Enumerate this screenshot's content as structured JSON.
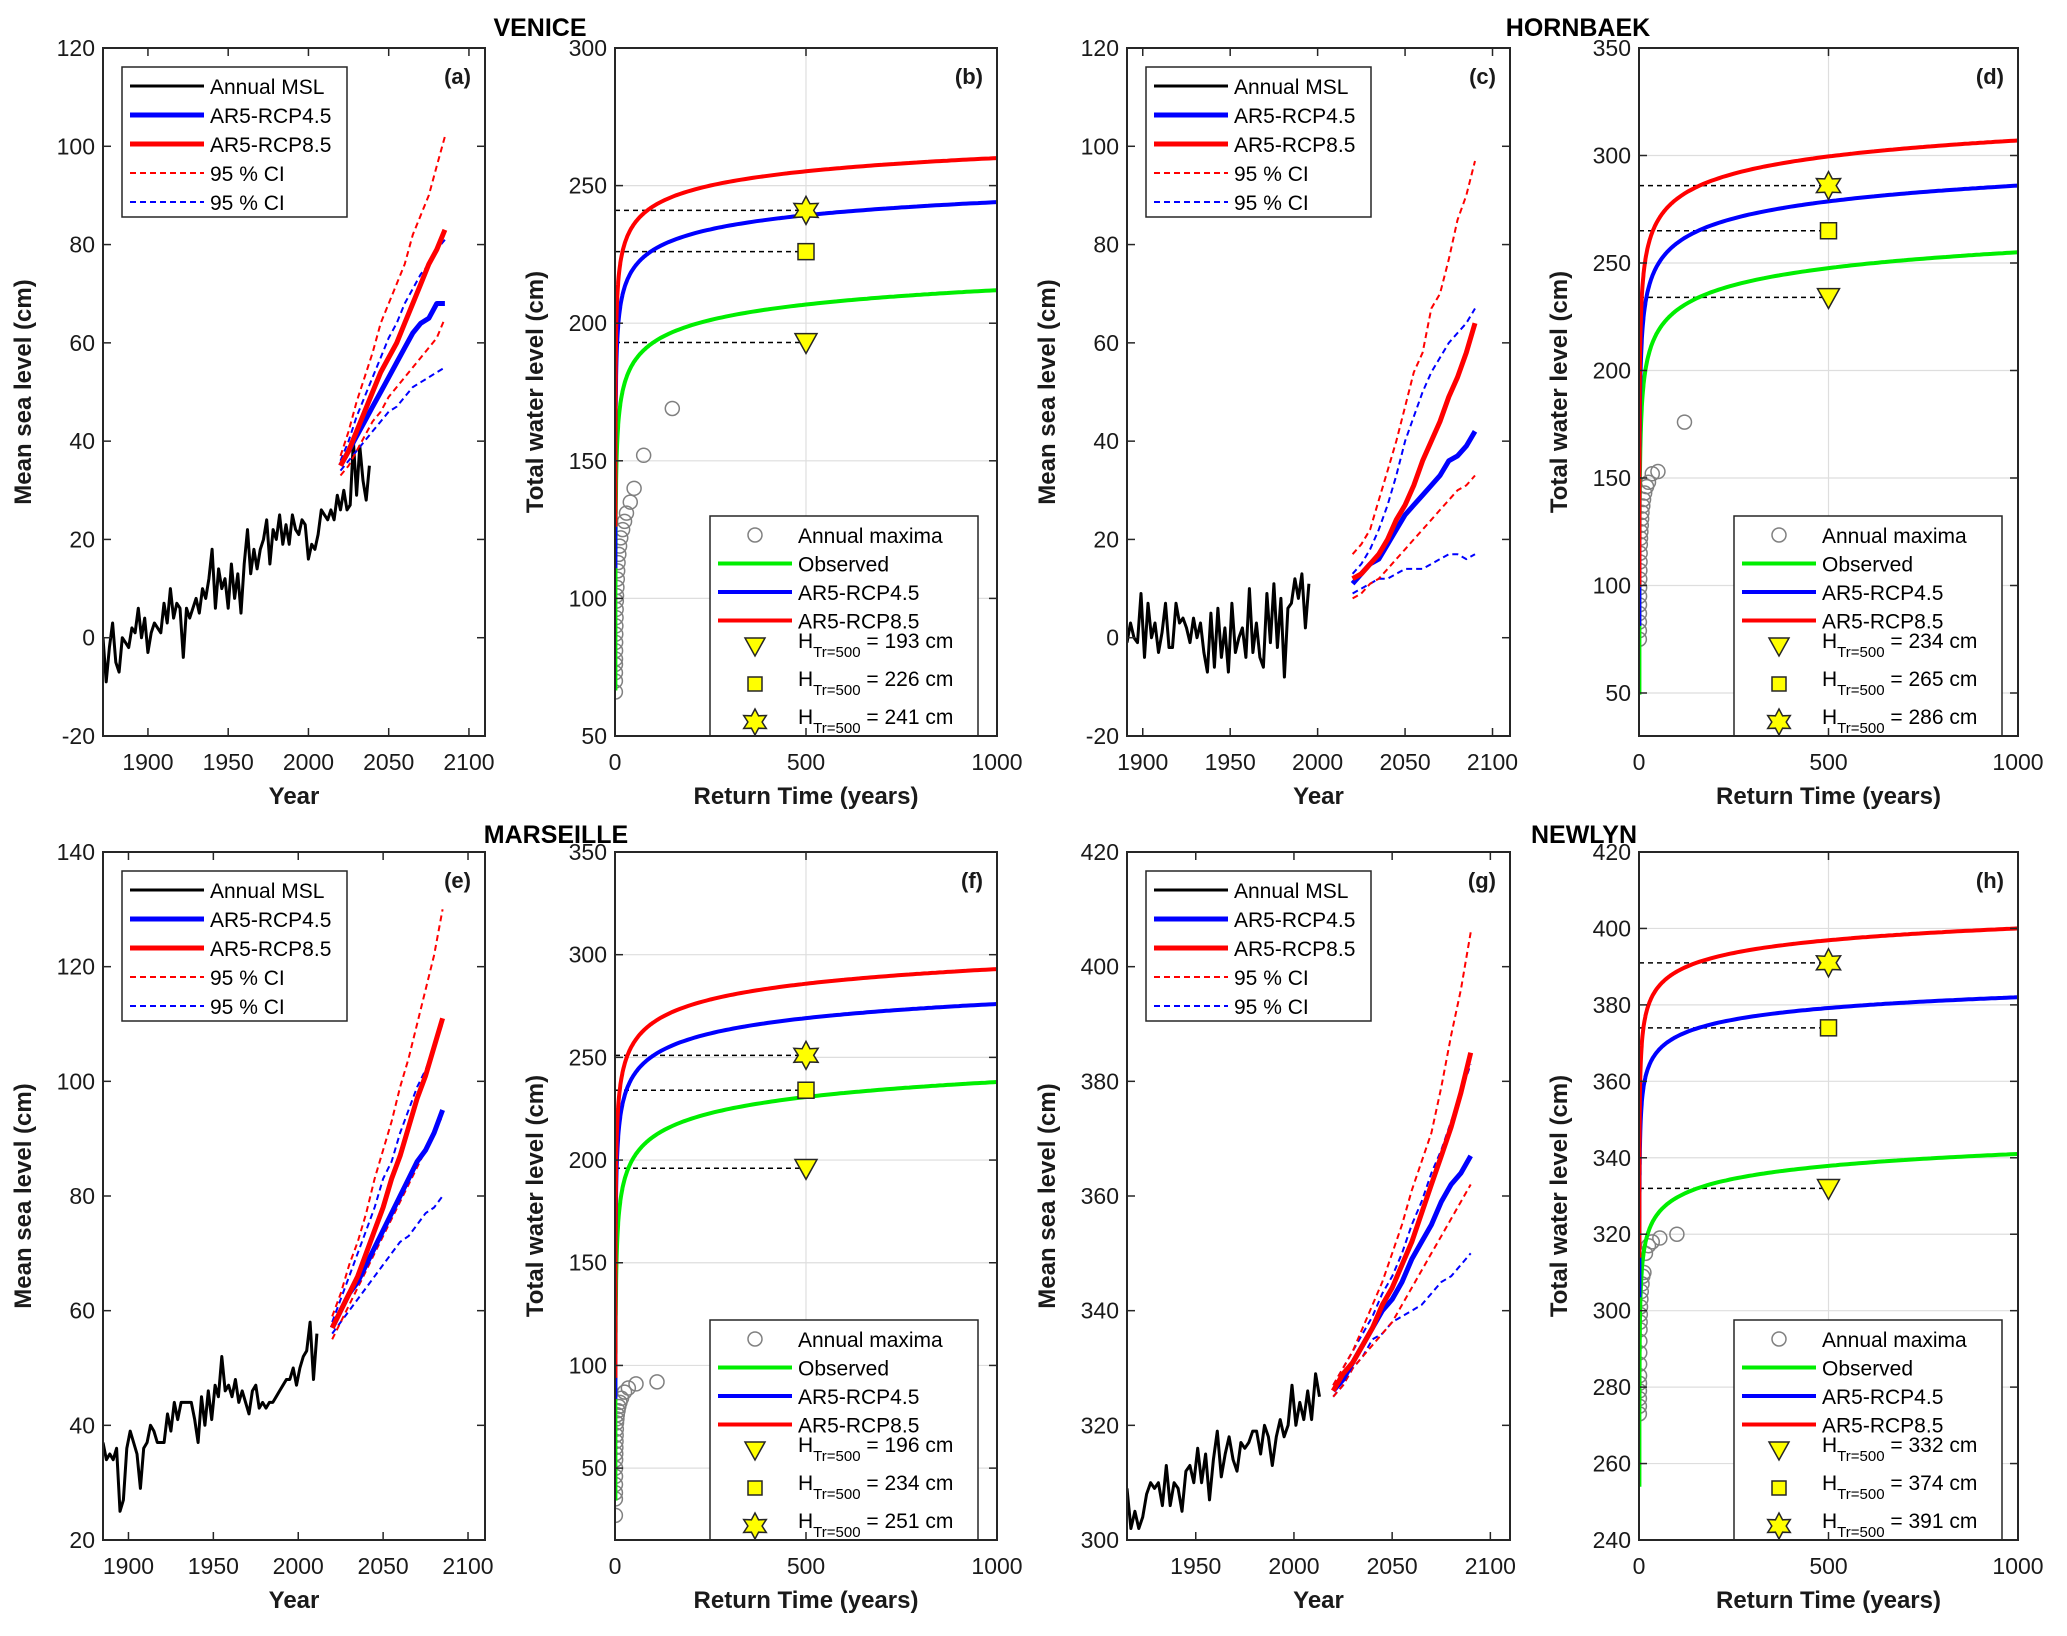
{
  "figure": {
    "stations": [
      "VENICE",
      "HORNBAEK",
      "MARSEILLE",
      "NEWLYN"
    ]
  },
  "legend_msl": {
    "items": [
      "Annual MSL",
      "AR5-RCP4.5",
      "AR5-RCP8.5",
      "95 % CI",
      "95 % CI"
    ]
  },
  "legend_rt": {
    "items": [
      "Annual maxima",
      "Observed",
      "AR5-RCP4.5",
      "AR5-RCP8.5"
    ],
    "h_prefix": "H",
    "h_sub": "Tr=500",
    "units": "cm"
  },
  "colors": {
    "observed_msl": "#000000",
    "rcp45": "#0000ff",
    "rcp85": "#ff0000",
    "observed_gev": "#00ee00",
    "marker_fill": "#ffff00",
    "maxima_edge": "#808080",
    "grid": "#dedede"
  },
  "chart_data": [
    {
      "id": "a",
      "station": "VENICE",
      "type": "line",
      "tag": "(a)",
      "xlabel": "Year",
      "ylabel": "Mean sea level (cm)",
      "xlim": [
        1872,
        2110
      ],
      "ylim": [
        -20,
        120
      ],
      "xticks": [
        1900,
        1950,
        2000,
        2050,
        2100
      ],
      "yticks": [
        -20,
        0,
        20,
        40,
        60,
        80,
        100,
        120
      ],
      "grid": false,
      "legend": "top-left",
      "msl": {
        "start": 1872,
        "step": 2,
        "values": [
          0,
          -9,
          -2,
          3,
          -5,
          -7,
          0,
          -1,
          -2,
          2,
          1,
          6,
          0,
          4,
          -3,
          1,
          3,
          2,
          1,
          7,
          3,
          10,
          4,
          7,
          6,
          -4,
          6,
          4,
          6,
          8,
          5,
          10,
          8,
          12,
          18,
          6,
          14,
          10,
          12,
          6,
          15,
          8,
          13,
          5,
          15,
          22,
          13,
          18,
          14,
          18,
          20,
          24,
          15,
          22,
          20,
          25,
          19,
          23,
          19,
          25,
          22,
          21,
          24,
          23,
          16,
          19,
          18,
          21,
          26,
          25,
          24,
          26,
          24,
          29,
          26,
          30,
          26,
          27,
          40,
          29,
          39,
          32,
          28,
          35
        ]
      },
      "rcp45": {
        "start": 2020,
        "step": 5,
        "values": [
          35,
          38,
          41,
          44,
          47,
          50,
          53,
          56,
          59,
          62,
          64,
          65,
          68,
          68
        ]
      },
      "rcp85": {
        "start": 2020,
        "step": 5,
        "values": [
          35,
          38,
          42,
          46,
          50,
          54,
          57,
          60,
          64,
          68,
          72,
          76,
          79,
          83
        ]
      },
      "rcp45_ci": {
        "lower": [
          34,
          36,
          38,
          40,
          42,
          44,
          46,
          47,
          49,
          51,
          52,
          53,
          54,
          55
        ],
        "upper": [
          36,
          40,
          45,
          49,
          53,
          57,
          61,
          64,
          68,
          71,
          74,
          76,
          79,
          81
        ]
      },
      "rcp85_ci": {
        "lower": [
          33,
          35,
          38,
          41,
          44,
          46,
          49,
          51,
          53,
          55,
          57,
          59,
          61,
          65
        ],
        "upper": [
          37,
          42,
          48,
          53,
          58,
          64,
          68,
          72,
          76,
          82,
          86,
          90,
          96,
          102
        ]
      }
    },
    {
      "id": "b",
      "station": "VENICE",
      "type": "line",
      "tag": "(b)",
      "xlabel": "Return Time (years)",
      "ylabel": "Total water level (cm)",
      "xlim": [
        0,
        1000
      ],
      "ylim": [
        50,
        300
      ],
      "xticks": [
        0,
        500,
        1000
      ],
      "yticks": [
        50,
        100,
        150,
        200,
        250,
        300
      ],
      "grid": true,
      "legend": "bottom-right",
      "h500": [
        193,
        226,
        241
      ],
      "curves": {
        "observed": {
          "start": 60,
          "at1000": 212
        },
        "rcp45": {
          "start": 105,
          "at1000": 244
        },
        "rcp85": {
          "start": 120,
          "at1000": 260
        }
      },
      "annual_maxima": {
        "rt": [
          1,
          1.05,
          1.1,
          1.2,
          1.3,
          1.5,
          1.7,
          2,
          2.3,
          2.7,
          3,
          3.5,
          4,
          5,
          6,
          7,
          8,
          10,
          12,
          15,
          20,
          25,
          30,
          40,
          50,
          75,
          150
        ],
        "values": [
          66,
          70,
          73,
          76,
          78,
          81,
          84,
          87,
          90,
          93,
          96,
          99,
          101,
          104,
          107,
          110,
          113,
          116,
          119,
          122,
          125,
          128,
          131,
          135,
          140,
          152,
          169
        ]
      }
    },
    {
      "id": "c",
      "station": "HORNBAEK",
      "type": "line",
      "tag": "(c)",
      "xlabel": "Year",
      "ylabel": "Mean sea level (cm)",
      "xlim": [
        1891,
        2110
      ],
      "ylim": [
        -20,
        120
      ],
      "xticks": [
        1900,
        1950,
        2000,
        2050,
        2100
      ],
      "yticks": [
        -20,
        0,
        20,
        40,
        60,
        80,
        100,
        120
      ],
      "grid": false,
      "legend": "top-left",
      "msl": {
        "start": 1891,
        "step": 2,
        "values": [
          -1,
          3,
          0,
          -1,
          9,
          -4,
          7,
          0,
          3,
          -3,
          1,
          7,
          -2,
          -2,
          7,
          3,
          4,
          2,
          -1,
          4,
          0,
          3,
          -3,
          -7,
          5,
          -6,
          6,
          -4,
          2,
          -7,
          7,
          -3,
          0,
          2,
          -4,
          10,
          -3,
          3,
          -4,
          -6,
          9,
          -1,
          11,
          -2,
          8,
          -8,
          6,
          7,
          12,
          8,
          13,
          2,
          11
        ]
      },
      "rcp45": {
        "start": 2020,
        "step": 5,
        "values": [
          11,
          13,
          15,
          16,
          19,
          22,
          25,
          27,
          29,
          31,
          33,
          36,
          37,
          39,
          42
        ]
      },
      "rcp85": {
        "start": 2020,
        "step": 5,
        "values": [
          12,
          13,
          15,
          17,
          20,
          24,
          27,
          31,
          36,
          40,
          44,
          49,
          53,
          58,
          64
        ]
      },
      "rcp45_ci": {
        "lower": [
          9,
          10,
          11,
          12,
          12,
          13,
          14,
          14,
          14,
          15,
          16,
          17,
          17,
          16,
          17
        ],
        "upper": [
          13,
          15,
          18,
          22,
          27,
          33,
          40,
          45,
          50,
          54,
          57,
          60,
          62,
          64,
          67
        ]
      },
      "rcp85_ci": {
        "lower": [
          8,
          9,
          11,
          12,
          14,
          16,
          18,
          20,
          22,
          24,
          26,
          28,
          30,
          31,
          33
        ],
        "upper": [
          17,
          19,
          22,
          28,
          34,
          40,
          47,
          54,
          58,
          67,
          70,
          77,
          85,
          90,
          97
        ]
      }
    },
    {
      "id": "d",
      "station": "HORNBAEK",
      "type": "line",
      "tag": "(d)",
      "xlabel": "Return Time (years)",
      "ylabel": "Total water level (cm)",
      "xlim": [
        0,
        1000
      ],
      "ylim": [
        30,
        350
      ],
      "xticks": [
        0,
        500,
        1000
      ],
      "yticks": [
        50,
        100,
        150,
        200,
        250,
        300,
        350
      ],
      "grid": true,
      "legend": "bottom-right",
      "h500": [
        234,
        265,
        286
      ],
      "curves": {
        "observed": {
          "start": 40,
          "at1000": 255
        },
        "rcp45": {
          "start": 72,
          "at1000": 286
        },
        "rcp85": {
          "start": 90,
          "at1000": 307
        }
      },
      "annual_maxima": {
        "rt": [
          1,
          1.05,
          1.1,
          1.2,
          1.3,
          1.5,
          1.7,
          2,
          2.3,
          2.7,
          3,
          3.5,
          4,
          5,
          6,
          7,
          8,
          10,
          12,
          15,
          20,
          25,
          35,
          50,
          120
        ],
        "values": [
          75,
          79,
          83,
          87,
          91,
          95,
          99,
          103,
          107,
          111,
          115,
          119,
          122,
          125,
          128,
          131,
          134,
          137,
          140,
          143,
          146,
          148,
          152,
          153,
          176
        ]
      }
    },
    {
      "id": "e",
      "station": "MARSEILLE",
      "type": "line",
      "tag": "(e)",
      "xlabel": "Year",
      "ylabel": "Mean sea level (cm)",
      "xlim": [
        1885,
        2110
      ],
      "ylim": [
        20,
        140
      ],
      "xticks": [
        1900,
        1950,
        2000,
        2050,
        2100
      ],
      "yticks": [
        20,
        40,
        60,
        80,
        100,
        120,
        140
      ],
      "grid": false,
      "legend": "top-left",
      "msl": {
        "start": 1885,
        "step": 2,
        "values": [
          37,
          34,
          35,
          34,
          36,
          25,
          27,
          36,
          39,
          37,
          35,
          29,
          36,
          37,
          40,
          39,
          37,
          37,
          37,
          42,
          39,
          44,
          41,
          44,
          44,
          44,
          44,
          41,
          37,
          45,
          40,
          46,
          41,
          47,
          45,
          52,
          46,
          47,
          45,
          48,
          44,
          46,
          44,
          42,
          46,
          47,
          43,
          44,
          43,
          44,
          44,
          45,
          46,
          47,
          48,
          48,
          50,
          47,
          50,
          52,
          53,
          58,
          48,
          56
        ]
      },
      "rcp45": {
        "start": 2020,
        "step": 5,
        "values": [
          57,
          60,
          63,
          65,
          68,
          71,
          74,
          77,
          80,
          83,
          86,
          88,
          91,
          95
        ]
      },
      "rcp85": {
        "start": 2020,
        "step": 5,
        "values": [
          57,
          60,
          63,
          66,
          70,
          74,
          78,
          83,
          87,
          92,
          97,
          101,
          106,
          111
        ]
      },
      "rcp45_ci": {
        "lower": [
          56,
          58,
          60,
          62,
          64,
          66,
          68,
          70,
          72,
          73,
          75,
          77,
          78,
          80
        ],
        "upper": [
          58,
          62,
          66,
          70,
          74,
          78,
          83,
          86,
          91,
          95,
          99,
          102,
          106,
          110
        ]
      },
      "rcp85_ci": {
        "lower": [
          55,
          58,
          61,
          64,
          67,
          70,
          73,
          76,
          79,
          82,
          85,
          88,
          91,
          94
        ],
        "upper": [
          59,
          63,
          68,
          72,
          77,
          83,
          88,
          93,
          99,
          104,
          110,
          116,
          122,
          130
        ]
      }
    },
    {
      "id": "f",
      "station": "MARSEILLE",
      "type": "line",
      "tag": "(f)",
      "xlabel": "Return Time (years)",
      "ylabel": "Total water level (cm)",
      "xlim": [
        0,
        1000
      ],
      "ylim": [
        15,
        350
      ],
      "xticks": [
        0,
        500,
        1000
      ],
      "yticks": [
        50,
        100,
        150,
        200,
        250,
        300,
        350
      ],
      "grid": true,
      "legend": "bottom-right",
      "h500": [
        196,
        234,
        251
      ],
      "curves": {
        "observed": {
          "start": 25,
          "at1000": 238
        },
        "rcp45": {
          "start": 75,
          "at1000": 276
        },
        "rcp85": {
          "start": 85,
          "at1000": 293
        }
      },
      "annual_maxima": {
        "rt": [
          1,
          1.05,
          1.1,
          1.2,
          1.3,
          1.5,
          1.7,
          2,
          2.3,
          2.7,
          3,
          3.5,
          4,
          5,
          6,
          8,
          10,
          13,
          17,
          25,
          35,
          55,
          110
        ],
        "values": [
          27,
          35,
          38,
          42,
          46,
          50,
          54,
          57,
          60,
          63,
          66,
          69,
          72,
          74,
          76,
          78,
          80,
          82,
          84,
          87,
          89,
          91,
          92
        ]
      }
    },
    {
      "id": "g",
      "station": "NEWLYN",
      "type": "line",
      "tag": "(g)",
      "xlabel": "Year",
      "ylabel": "Mean sea level (cm)",
      "xlim": [
        1915,
        2110
      ],
      "ylim": [
        300,
        420
      ],
      "xticks": [
        1950,
        2000,
        2050,
        2100
      ],
      "yticks": [
        300,
        320,
        340,
        360,
        380,
        400,
        420
      ],
      "grid": false,
      "legend": "top-left",
      "msl": {
        "start": 1915,
        "step": 2,
        "values": [
          309,
          302,
          305,
          302,
          304,
          308,
          310,
          309,
          310,
          306,
          313,
          306,
          310,
          309,
          305,
          312,
          313,
          310,
          316,
          310,
          315,
          307,
          314,
          319,
          311,
          315,
          318,
          314,
          312,
          317,
          316,
          317,
          319,
          319,
          315,
          320,
          318,
          313,
          318,
          321,
          318,
          320,
          327,
          320,
          324,
          321,
          326,
          321,
          329,
          325
        ]
      },
      "rcp45": {
        "start": 2020,
        "step": 5,
        "values": [
          326,
          328,
          331,
          334,
          337,
          340,
          342,
          345,
          349,
          352,
          355,
          359,
          362,
          364,
          367
        ]
      },
      "rcp85": {
        "start": 2020,
        "step": 5,
        "values": [
          326,
          329,
          331,
          334,
          337,
          341,
          344,
          348,
          352,
          357,
          362,
          367,
          372,
          378,
          385
        ]
      },
      "rcp45_ci": {
        "lower": [
          325,
          327,
          330,
          332,
          335,
          336,
          338,
          339,
          340,
          341,
          343,
          345,
          346,
          348,
          350
        ],
        "upper": [
          327,
          330,
          333,
          336,
          339,
          343,
          346,
          350,
          355,
          359,
          364,
          368,
          373,
          378,
          383
        ]
      },
      "rcp85_ci": {
        "lower": [
          325,
          327,
          330,
          332,
          334,
          336,
          338,
          341,
          344,
          347,
          350,
          353,
          356,
          359,
          362
        ],
        "upper": [
          327,
          330,
          333,
          337,
          341,
          345,
          350,
          355,
          361,
          366,
          371,
          379,
          388,
          396,
          406
        ]
      }
    },
    {
      "id": "h",
      "station": "NEWLYN",
      "type": "line",
      "tag": "(h)",
      "xlabel": "Return Time (years)",
      "ylabel": "Total water level (cm)",
      "xlim": [
        0,
        1000
      ],
      "ylim": [
        240,
        420
      ],
      "xticks": [
        0,
        500,
        1000
      ],
      "yticks": [
        240,
        260,
        280,
        300,
        320,
        340,
        360,
        380,
        400,
        420
      ],
      "grid": true,
      "legend": "bottom-right",
      "h500": [
        332,
        374,
        391
      ],
      "curves": {
        "observed": {
          "start": 250,
          "at1000": 341
        },
        "rcp45": {
          "start": 300,
          "at1000": 382
        },
        "rcp85": {
          "start": 310,
          "at1000": 400
        }
      },
      "annual_maxima": {
        "rt": [
          1,
          1.05,
          1.1,
          1.2,
          1.3,
          1.5,
          1.7,
          2,
          2.3,
          2.7,
          3,
          3.5,
          4,
          5,
          6,
          8,
          10,
          13,
          17,
          25,
          35,
          55,
          100
        ],
        "values": [
          273,
          275,
          277,
          279,
          281,
          283,
          286,
          289,
          292,
          295,
          297,
          299,
          301,
          303,
          305,
          307,
          309,
          310,
          315,
          317,
          318,
          319,
          320
        ]
      }
    }
  ]
}
